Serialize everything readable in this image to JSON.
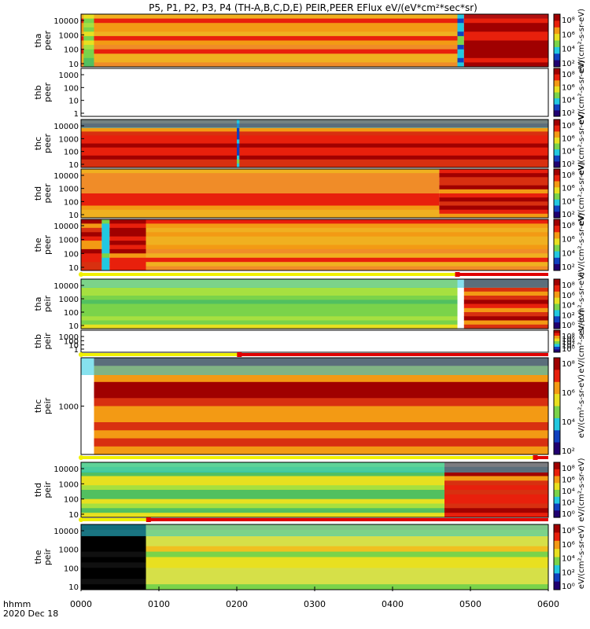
{
  "chart_data": {
    "type": "heatmap",
    "title": "P5, P1, P2, P3, P4 (TH-A,B,C,D,E) PEIR,PEER EFlux eV/(eV*cm²*sec*sr)",
    "time_axis": {
      "label_line1": "hhmm",
      "label_line2": "2020 Dec 18",
      "ticks": [
        "0000",
        "0100",
        "0200",
        "0300",
        "0400",
        "0500",
        "0600"
      ],
      "range_min": [
        0,
        360
      ]
    },
    "colorbar_units": "eV/(cm²-s-sr-eV)",
    "panels": [
      {
        "label1": "tha",
        "label2": "peer",
        "yticks": [
          "10000",
          "1000",
          "100",
          "10"
        ],
        "cbar_ticks": [
          "10⁸",
          "10⁶",
          "10⁴",
          "10²"
        ],
        "empty": false,
        "regions": [
          [
            "orange",
            0,
            290
          ],
          [
            "green",
            2,
            10
          ],
          [
            "cyan",
            290,
            295
          ],
          [
            "darkred",
            295,
            360
          ]
        ]
      },
      {
        "label1": "thb",
        "label2": "peer",
        "yticks": [
          "1000",
          "100",
          "10",
          "1"
        ],
        "cbar_ticks": [
          "10⁸",
          "10⁶",
          "10⁴",
          "10²"
        ],
        "empty": true
      },
      {
        "label1": "thc",
        "label2": "peer",
        "yticks": [
          "10000",
          "1000",
          "100",
          "10"
        ],
        "cbar_ticks": [
          "10⁸",
          "10⁶",
          "10⁴",
          "10²"
        ],
        "empty": false,
        "regions": [
          [
            "red",
            0,
            360
          ],
          [
            "cyan",
            120,
            122
          ]
        ]
      },
      {
        "label1": "thd",
        "label2": "peer",
        "yticks": [
          "10000",
          "1000",
          "100",
          "10"
        ],
        "cbar_ticks": [
          "10⁸",
          "10⁶",
          "10⁴",
          "10²"
        ],
        "empty": false,
        "regions": [
          [
            "orange",
            0,
            276
          ],
          [
            "red",
            276,
            360
          ]
        ]
      },
      {
        "label1": "the",
        "label2": "peer",
        "yticks": [
          "10000",
          "1000",
          "100",
          "10"
        ],
        "cbar_ticks": [
          "10⁸",
          "10⁶",
          "10⁴",
          "10²"
        ],
        "empty": false,
        "regions": [
          [
            "red",
            0,
            16
          ],
          [
            "cyan",
            16,
            22
          ],
          [
            "red",
            22,
            50
          ],
          [
            "orange",
            50,
            360
          ]
        ]
      },
      {
        "label1": "tha",
        "label2": "peir",
        "yticks": [
          "10000",
          "1000",
          "100",
          "10"
        ],
        "cbar_ticks": [
          "10⁸",
          "10⁶",
          "10⁴",
          "10²",
          "10⁰"
        ],
        "empty": false,
        "regions": [
          [
            "green",
            0,
            290
          ],
          [
            "red",
            295,
            360
          ]
        ]
      },
      {
        "label1": "thb",
        "label2": "peir",
        "yticks": [
          "1000",
          "100",
          "10",
          "1"
        ],
        "cbar_ticks": [
          "10⁸",
          "10⁶",
          "10⁴",
          "10²",
          "10⁰"
        ],
        "empty": true
      },
      {
        "label1": "thc",
        "label2": "peir",
        "yticks": [
          "1000"
        ],
        "cbar_ticks": [
          "10⁸",
          "10⁶",
          "10⁴",
          "10²"
        ],
        "empty": false,
        "regions": [
          [
            "red",
            10,
            360
          ]
        ]
      },
      {
        "label1": "thd",
        "label2": "peir",
        "yticks": [
          "10000",
          "1000",
          "100",
          "10"
        ],
        "cbar_ticks": [
          "10⁸",
          "10⁶",
          "10⁴",
          "10²",
          "10⁰"
        ],
        "empty": false,
        "regions": [
          [
            "green",
            0,
            280
          ],
          [
            "red",
            280,
            360
          ]
        ]
      },
      {
        "label1": "the",
        "label2": "peir",
        "yticks": [
          "10000",
          "1000",
          "100",
          "10"
        ],
        "cbar_ticks": [
          "10⁸",
          "10⁶",
          "10⁴",
          "10²",
          "10⁰"
        ],
        "empty": false,
        "regions": [
          [
            "black",
            0,
            50
          ],
          [
            "yellow",
            50,
            360
          ]
        ]
      }
    ],
    "status_bars": [
      {
        "after_panel": 4,
        "yellow_to_min": 290,
        "red_to_min": 360
      },
      {
        "after_panel": 6,
        "yellow_to_min": 122,
        "red_to_min": 360
      },
      {
        "after_panel": 7,
        "yellow_to_min": 350,
        "red_to_min": 360
      },
      {
        "after_panel": 8,
        "yellow_to_min": 52,
        "red_to_min": 360
      }
    ],
    "colors": {
      "darkred": "#a00000",
      "red": "#e8200c",
      "orange": "#f39a14",
      "yellow": "#e8e020",
      "green": "#7ad34a",
      "cyan": "#22c8e0",
      "blue": "#1040c0",
      "black": "#000000"
    }
  }
}
